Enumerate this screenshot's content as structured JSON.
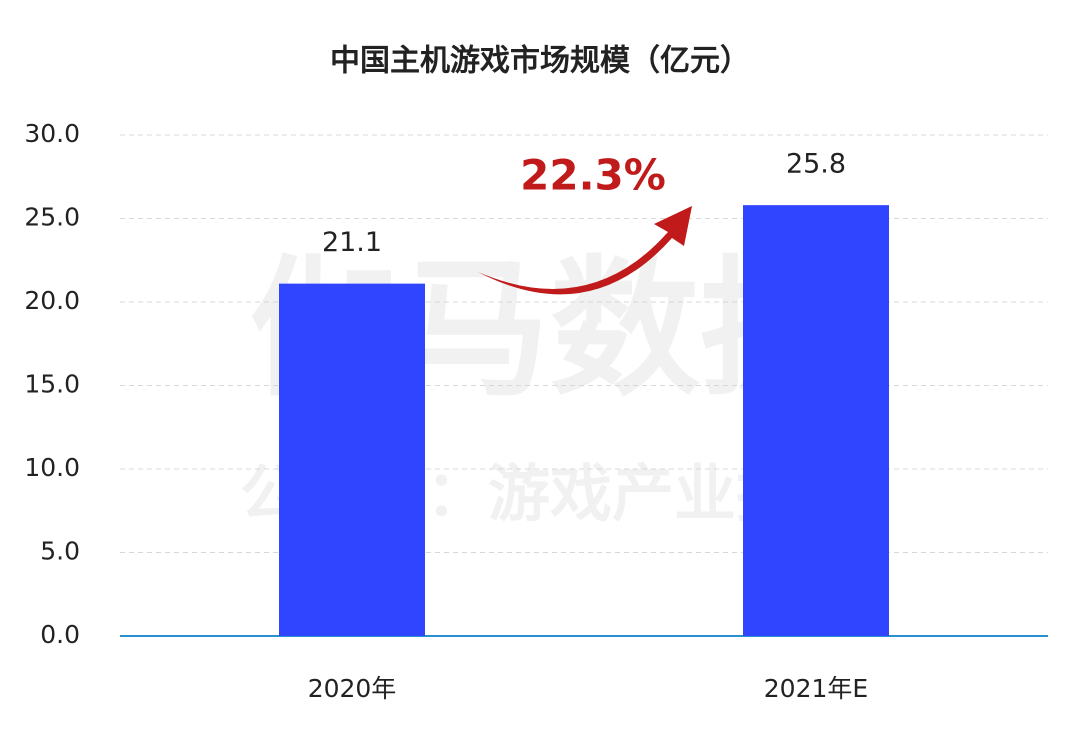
{
  "chart_data": {
    "type": "bar",
    "title": "中国主机游戏市场规模（亿元）",
    "categories": [
      "2020年",
      "2021年E"
    ],
    "values": [
      21.1,
      25.8
    ],
    "color": "#2f45ff",
    "ylim": [
      0,
      30
    ],
    "yticks": [
      {
        "value": 0,
        "label": "0.0"
      },
      {
        "value": 5,
        "label": "5.0"
      },
      {
        "value": 10,
        "label": "10.0"
      },
      {
        "value": 15,
        "label": "15.0"
      },
      {
        "value": 20,
        "label": "20.0"
      },
      {
        "value": 25,
        "label": "25.0"
      },
      {
        "value": 30,
        "label": "30.0"
      }
    ],
    "grid": true,
    "annotation": "22.3%",
    "watermark": [
      "伽马数据",
      "公众号：游戏产业报告"
    ]
  }
}
